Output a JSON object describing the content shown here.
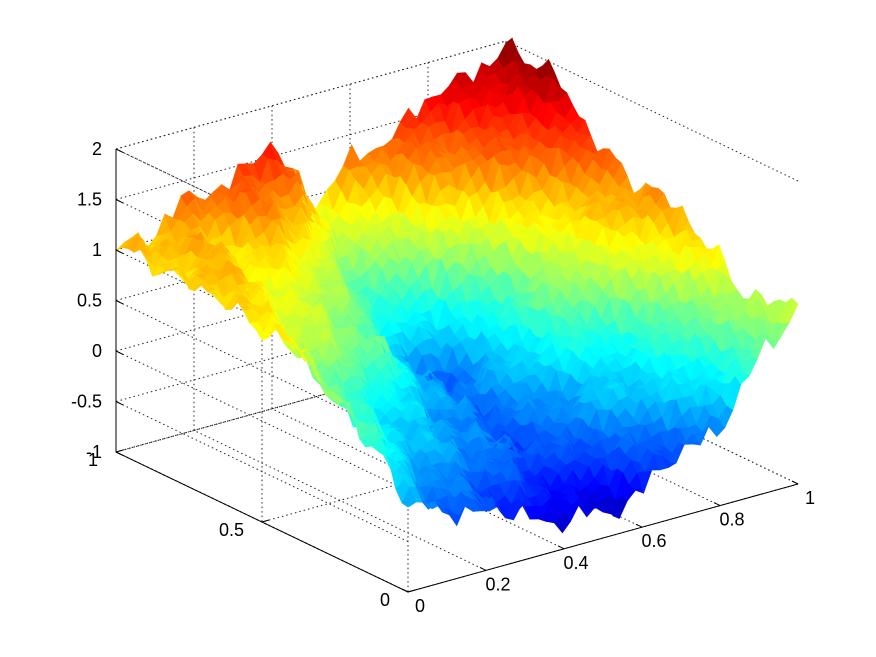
{
  "figure": {
    "background": "#ffffff"
  },
  "chart_data": {
    "type": "surface",
    "title": "",
    "xlabel": "",
    "ylabel": "",
    "zlabel": "",
    "x_range": [
      0,
      1
    ],
    "y_range": [
      0,
      1
    ],
    "zlim": [
      -1,
      2
    ],
    "grid": true,
    "colormap": "jet",
    "x_ticks": [
      0,
      0.2,
      0.4,
      0.6,
      0.8,
      1
    ],
    "x_tick_labels": [
      "0",
      "0.2",
      "0.4",
      "0.6",
      "0.8",
      "1"
    ],
    "y_ticks": [
      0,
      0.5,
      1
    ],
    "y_tick_labels": [
      "0",
      "0.5",
      "1"
    ],
    "z_ticks": [
      -1,
      -0.5,
      0,
      0.5,
      1,
      1.5,
      2
    ],
    "z_tick_labels": [
      "-1",
      "-0.5",
      "0",
      "0.5",
      "1",
      "1.5",
      "2"
    ],
    "grid_x": [
      0,
      0.1,
      0.2,
      0.3,
      0.4,
      0.5,
      0.6,
      0.7,
      0.8,
      0.9,
      1
    ],
    "grid_y": [
      0,
      0.1,
      0.2,
      0.3,
      0.4,
      0.5,
      0.6,
      0.7,
      0.8,
      0.9,
      1
    ],
    "z": [
      [
        -0.2,
        -0.3,
        -0.4,
        -0.6,
        -0.7,
        -0.8,
        -0.6,
        -0.4,
        -0.2,
        0.3,
        0.8
      ],
      [
        0.3,
        -0.2,
        -0.3,
        -0.4,
        -0.5,
        -0.6,
        -0.4,
        -0.2,
        0.0,
        0.3,
        0.7
      ],
      [
        0.5,
        0.1,
        -0.1,
        -0.2,
        -0.3,
        -0.4,
        -0.2,
        0.0,
        0.1,
        0.4,
        0.7
      ],
      [
        0.7,
        0.2,
        0.0,
        -0.1,
        -0.3,
        -0.4,
        -0.2,
        0.0,
        0.1,
        0.6,
        0.9
      ],
      [
        0.9,
        0.4,
        0.2,
        0.0,
        -0.2,
        -0.3,
        -0.1,
        0.2,
        0.4,
        0.8,
        1.1
      ],
      [
        0.9,
        0.7,
        0.6,
        0.4,
        0.0,
        -0.3,
        -0.1,
        0.3,
        0.7,
        1.0,
        1.2
      ],
      [
        1.0,
        0.9,
        0.7,
        0.5,
        0.1,
        -0.4,
        -0.2,
        0.3,
        0.8,
        1.0,
        1.3
      ],
      [
        1.1,
        1.0,
        0.8,
        0.7,
        0.5,
        0.0,
        0.1,
        0.4,
        0.9,
        1.2,
        1.5
      ],
      [
        1.0,
        1.1,
        0.9,
        1.0,
        0.6,
        0.3,
        0.5,
        0.9,
        1.2,
        1.5,
        1.8
      ],
      [
        1.0,
        1.1,
        1.0,
        1.3,
        1.1,
        0.7,
        0.8,
        1.2,
        1.4,
        1.6,
        1.9
      ],
      [
        1.0,
        1.1,
        1.3,
        1.4,
        1.6,
        0.9,
        1.2,
        1.4,
        1.6,
        1.8,
        1.9
      ]
    ]
  }
}
